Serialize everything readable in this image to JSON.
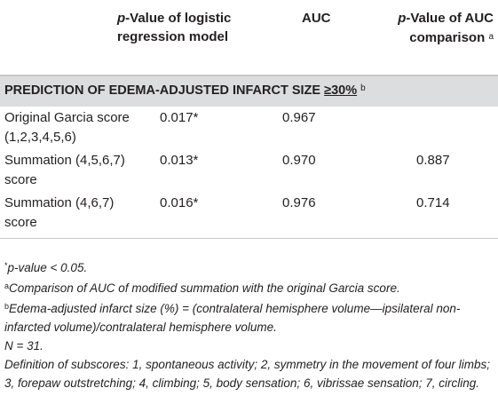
{
  "table": {
    "headers": {
      "col1_italic": "p",
      "col1_rest": "-Value of logistic regression model",
      "col2": "AUC",
      "col3_italic": "p",
      "col3_rest": "-Value of AUC comparison",
      "col3_sup": "a"
    },
    "section": {
      "title_prefix": "PREDICTION OF EDEMA-ADJUSTED INFARCT SIZE ",
      "title_ge": "≥30%",
      "sup": "b"
    },
    "rows": [
      {
        "label": "Original Garcia score (1,2,3,4,5,6)",
        "p_logistic": "0.017*",
        "auc": "0.967",
        "p_auc": ""
      },
      {
        "label": "Summation (4,5,6,7) score",
        "p_logistic": "0.013*",
        "auc": "0.970",
        "p_auc": "0.887"
      },
      {
        "label": "Summation (4,6,7) score",
        "p_logistic": "0.016*",
        "auc": "0.976",
        "p_auc": "0.714"
      }
    ]
  },
  "notes": {
    "n1_sup": "*",
    "n1": "p-value < 0.05.",
    "n2_sup": "a",
    "n2": "Comparison of AUC of modified summation with the original Garcia score.",
    "n3_sup": "b",
    "n3": "Edema-adjusted infarct size (%) = (contralateral hemisphere volume—ipsilateral non-infarcted volume)/contralateral hemisphere volume.",
    "n4": "N = 31.",
    "n5": "Definition of subscores: 1, spontaneous activity; 2, symmetry in the movement of four limbs; 3, forepaw outstretching; 4, climbing; 5, body sensation; 6, vibrissae sensation; 7, circling."
  }
}
